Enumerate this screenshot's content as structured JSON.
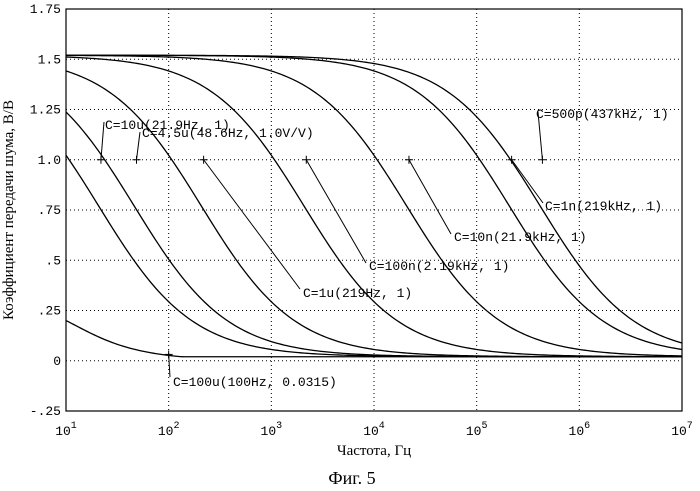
{
  "chart_data": {
    "type": "line",
    "xlabel": "Частота, Гц",
    "ylabel": "Коэффициент передачи шума, В/В",
    "caption": "Фиг. 5",
    "x_scale": "log",
    "xlim": [
      10,
      10000000
    ],
    "ylim": [
      -0.25,
      1.75
    ],
    "grid": true,
    "x_ticks": [
      {
        "value": 10,
        "base": "10",
        "exp": "1"
      },
      {
        "value": 100,
        "base": "10",
        "exp": "2"
      },
      {
        "value": 1000,
        "base": "10",
        "exp": "3"
      },
      {
        "value": 10000,
        "base": "10",
        "exp": "4"
      },
      {
        "value": 100000,
        "base": "10",
        "exp": "5"
      },
      {
        "value": 1000000,
        "base": "10",
        "exp": "6"
      },
      {
        "value": 10000000,
        "base": "10",
        "exp": "7"
      }
    ],
    "y_ticks": [
      {
        "value": 1.75,
        "label": "1.75"
      },
      {
        "value": 1.5,
        "label": "1.5"
      },
      {
        "value": 1.25,
        "label": "1.25"
      },
      {
        "value": 1.0,
        "label": "1.0"
      },
      {
        "value": 0.75,
        "label": ".75"
      },
      {
        "value": 0.5,
        "label": ".5"
      },
      {
        "value": 0.25,
        "label": ".25"
      },
      {
        "value": 0,
        "label": "0"
      },
      {
        "value": -0.25,
        "label": "-.25"
      }
    ],
    "series": [
      {
        "name": "C=100u",
        "marker": [
          100,
          0.0315
        ],
        "label": "C=100u(100Hz, 0.0315)"
      },
      {
        "name": "C=10u",
        "marker": [
          21.9,
          1
        ],
        "label": "C=10u(21.9Hz, 1)"
      },
      {
        "name": "C=4.5u",
        "marker": [
          48.6,
          1
        ],
        "label": "C=4.5u(48.6Hz, 1.0V/V)"
      },
      {
        "name": "C=1u",
        "marker": [
          219,
          1
        ],
        "label": "C=1u(219Hz, 1)"
      },
      {
        "name": "C=100n",
        "marker": [
          2190,
          1
        ],
        "label": "C=100n(2.19kHz, 1)"
      },
      {
        "name": "C=10n",
        "marker": [
          21900,
          1
        ],
        "label": "C=10n(21.9kHz, 1)"
      },
      {
        "name": "C=1n",
        "marker": [
          219000,
          1
        ],
        "label": "C=1n(219kHz, 1)"
      },
      {
        "name": "C=500p",
        "marker": [
          437000,
          1
        ],
        "label": "C=500p(437kHz, 1)"
      }
    ]
  }
}
